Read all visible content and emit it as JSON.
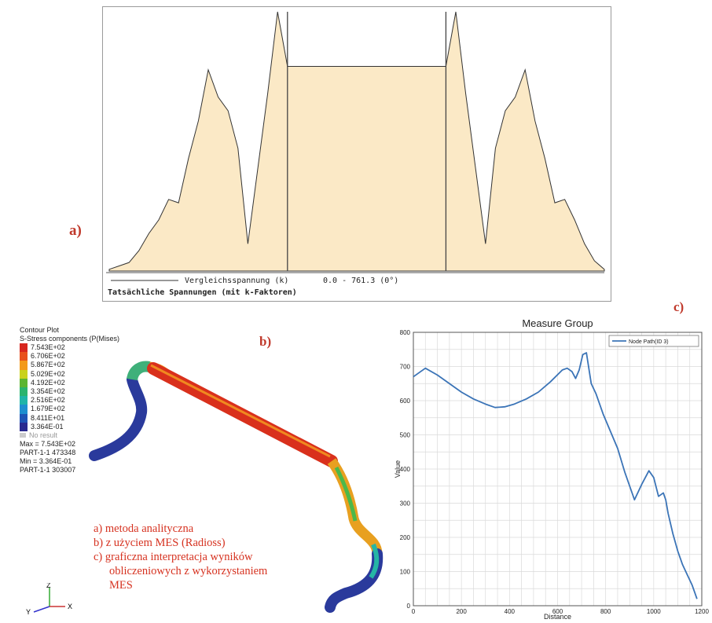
{
  "labels": {
    "a": "a)",
    "b": "b)",
    "c": "c)"
  },
  "chart_a": {
    "yticks": [
      "100",
      "200",
      "300",
      "400",
      "500",
      "600",
      "700"
    ],
    "legend_left": "Vergleichsspannung (k)",
    "legend_range": "0.0 -   761.3 (0°)",
    "footer": "Tatsächliche Spannungen (mit k-Faktoren)",
    "fill_color": "#fbe9c6"
  },
  "contour_plot": {
    "title": "Contour Plot",
    "subtitle": "S-Stress components (P(Mises)",
    "legend_values": [
      "7.543E+02",
      "6.706E+02",
      "5.867E+02",
      "5.029E+02",
      "4.192E+02",
      "3.354E+02",
      "2.516E+02",
      "1.679E+02",
      "8.411E+01",
      "3.364E-01"
    ],
    "legend_colors": [
      "#d7261e",
      "#e8501c",
      "#f39a1a",
      "#c9d21c",
      "#5cb531",
      "#2ab46e",
      "#1fb5a8",
      "#1e8fcf",
      "#1f55b5",
      "#2a2a8f"
    ],
    "no_result": "No result",
    "max": "Max = 7.543E+02",
    "max_node": "PART-1-1 473348",
    "min": "Min = 3.364E-01",
    "min_node": "PART-1-1 303007",
    "axes": {
      "y": "Y",
      "z": "Z",
      "x": "X"
    }
  },
  "captions": [
    "a) metoda analityczna",
    "b) z użyciem MES (Radioss)",
    "c) graficzna interpretacja wyników",
    "obliczeniowych z wykorzystaniem",
    "MES"
  ],
  "chart_data": [
    {
      "type": "area",
      "title": "",
      "xlabel": "",
      "ylabel": "",
      "ylim": [
        0,
        760
      ],
      "legend": [
        "Vergleichsspannung (k)"
      ],
      "x": [
        0,
        2,
        4,
        6,
        8,
        10,
        12,
        14,
        16,
        18,
        20,
        22,
        24,
        26,
        28,
        30,
        32,
        34,
        36,
        38,
        40,
        42,
        44,
        46,
        48,
        50,
        52,
        54,
        56,
        58,
        60,
        62,
        64,
        66,
        68,
        70,
        72,
        74,
        76,
        78,
        80,
        82,
        84,
        86,
        88,
        90,
        92,
        94,
        96,
        98,
        100
      ],
      "values": [
        5,
        15,
        25,
        60,
        110,
        150,
        210,
        200,
        330,
        440,
        590,
        510,
        470,
        360,
        80,
        300,
        520,
        760,
        600,
        600,
        600,
        600,
        600,
        600,
        600,
        600,
        600,
        600,
        600,
        600,
        600,
        600,
        600,
        600,
        600,
        760,
        520,
        300,
        80,
        360,
        470,
        510,
        590,
        440,
        330,
        200,
        210,
        150,
        80,
        30,
        5
      ]
    },
    {
      "type": "line",
      "title": "Measure Group",
      "xlabel": "Distance",
      "ylabel": "Value",
      "xlim": [
        0,
        1200
      ],
      "ylim": [
        0,
        800
      ],
      "xticks": [
        0,
        200,
        400,
        600,
        800,
        1000,
        1200
      ],
      "yticks": [
        0,
        100,
        200,
        300,
        400,
        500,
        600,
        700,
        800
      ],
      "legend_position": "top-right",
      "series": [
        {
          "name": "Node Path(ID 3)",
          "color": "#3b74b7",
          "x": [
            0,
            20,
            50,
            100,
            150,
            200,
            250,
            300,
            340,
            380,
            420,
            470,
            520,
            570,
            620,
            640,
            660,
            675,
            690,
            705,
            720,
            740,
            760,
            790,
            820,
            850,
            880,
            900,
            920,
            950,
            980,
            1000,
            1020,
            1040,
            1050,
            1060,
            1080,
            1100,
            1120,
            1140,
            1160,
            1170,
            1180
          ],
          "values": [
            670,
            680,
            695,
            675,
            650,
            625,
            605,
            590,
            580,
            582,
            590,
            605,
            625,
            655,
            690,
            695,
            685,
            665,
            690,
            735,
            740,
            650,
            620,
            560,
            510,
            460,
            390,
            350,
            310,
            355,
            395,
            375,
            320,
            330,
            310,
            270,
            210,
            160,
            120,
            90,
            60,
            40,
            20
          ]
        }
      ]
    }
  ]
}
